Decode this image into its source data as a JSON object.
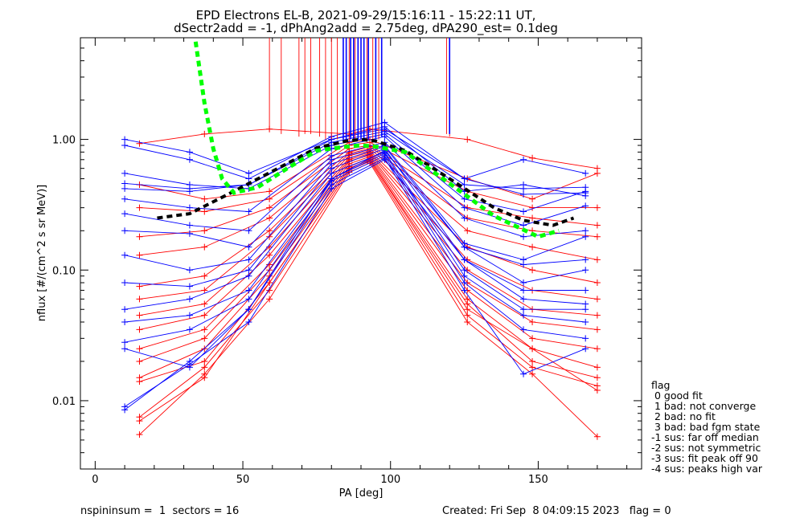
{
  "title_line1": "EPD Electrons EL-B, 2021-09-29/15:16:11 - 15:22:11 UT,",
  "title_line2": "dSectr2add = -1, dPhAng2add = 2.75deg, dPA290_est=   0.1deg",
  "footer": {
    "left": "nspininsum =  1  sectors = 16",
    "right": "Created: Fri Sep  8 04:09:15 2023   flag = 0"
  },
  "legend": {
    "heading": "flag",
    "items": [
      " 0 good fit",
      " 1 bad: not converge",
      " 2 bad: no fit",
      " 3 bad: bad fgm state",
      "-1 sus: far off median",
      "-2 sus: not symmetric",
      "-3 sus: fit peak off 90",
      "-4 sus: peaks high var"
    ]
  },
  "colors": {
    "red": "#ff0000",
    "blue": "#0000ff",
    "green": "#00ff00",
    "black": "#000000"
  },
  "chart_data": {
    "type": "line",
    "title": "EPD Electrons EL-B, 2021-09-29/15:16:11 - 15:22:11 UT,",
    "subtitle": "dSectr2add = -1, dPhAng2add = 2.75deg, dPA290_est=   0.1deg",
    "xlabel": "PA [deg]",
    "ylabel": "nflux [#/(cm^2 s sr MeV)]",
    "xlim": [
      -5,
      185
    ],
    "ylim": [
      0.003,
      6.0
    ],
    "yscale": "log",
    "x_ticks": [
      0,
      50,
      100,
      150
    ],
    "x_tick_labels": [
      "0",
      "50",
      "100",
      "150"
    ],
    "y_ticks": [
      0.01,
      0.1,
      1.0
    ],
    "y_tick_labels": [
      "0.01",
      "0.10",
      "1.00"
    ],
    "grid": false,
    "legend_position": "right, outside plot",
    "lines": [
      {
        "name": "median fit",
        "color": "black",
        "style": "dashed",
        "x": [
          21,
          32,
          45,
          60,
          75,
          85,
          90,
          95,
          105,
          120,
          135,
          145,
          155,
          162
        ],
        "y": [
          0.25,
          0.27,
          0.38,
          0.57,
          0.86,
          0.97,
          1.0,
          0.97,
          0.82,
          0.5,
          0.3,
          0.24,
          0.22,
          0.25
        ]
      },
      {
        "name": "green fit",
        "color": "green",
        "style": "dashed",
        "x": [
          34,
          37,
          40,
          43,
          47,
          55,
          65,
          75,
          85,
          90,
          95,
          105,
          120,
          135,
          150,
          157
        ],
        "y": [
          5.6,
          1.9,
          0.85,
          0.5,
          0.39,
          0.43,
          0.6,
          0.82,
          0.88,
          0.9,
          0.88,
          0.8,
          0.46,
          0.26,
          0.18,
          0.2
        ]
      }
    ],
    "series": [
      {
        "color": "blue",
        "x": [
          10,
          32,
          52,
          80,
          98,
          125,
          145,
          166
        ],
        "y": [
          1.0,
          0.8,
          0.55,
          1.0,
          1.25,
          0.4,
          0.45,
          0.37
        ]
      },
      {
        "color": "blue",
        "x": [
          10,
          32,
          52,
          80,
          98,
          125,
          145,
          166
        ],
        "y": [
          0.9,
          0.7,
          0.5,
          1.05,
          1.35,
          0.5,
          0.7,
          0.55
        ]
      },
      {
        "color": "blue",
        "x": [
          10,
          32,
          52,
          80,
          98,
          125,
          145,
          166
        ],
        "y": [
          0.55,
          0.45,
          0.42,
          0.9,
          1.1,
          0.35,
          0.28,
          0.4
        ]
      },
      {
        "color": "blue",
        "x": [
          10,
          32,
          52,
          80,
          98,
          125,
          145,
          166
        ],
        "y": [
          0.46,
          0.42,
          0.45,
          0.95,
          1.15,
          0.45,
          0.42,
          0.43
        ]
      },
      {
        "color": "blue",
        "x": [
          10,
          32,
          52,
          80,
          98,
          125,
          145,
          166
        ],
        "y": [
          0.42,
          0.4,
          0.45,
          1.0,
          1.2,
          0.5,
          0.38,
          0.39
        ]
      },
      {
        "color": "blue",
        "x": [
          10,
          32,
          52,
          80,
          98,
          125,
          145,
          166
        ],
        "y": [
          0.35,
          0.3,
          0.28,
          0.85,
          1.05,
          0.3,
          0.22,
          0.31
        ]
      },
      {
        "color": "blue",
        "x": [
          10,
          32,
          52,
          80,
          98,
          125,
          145,
          166
        ],
        "y": [
          0.27,
          0.22,
          0.2,
          0.75,
          0.95,
          0.25,
          0.18,
          0.2
        ]
      },
      {
        "color": "blue",
        "x": [
          10,
          32,
          52,
          80,
          98,
          125,
          145,
          166
        ],
        "y": [
          0.2,
          0.19,
          0.15,
          0.7,
          0.9,
          0.16,
          0.12,
          0.18
        ]
      },
      {
        "color": "blue",
        "x": [
          10,
          32,
          52,
          80,
          98,
          125,
          145,
          166
        ],
        "y": [
          0.13,
          0.1,
          0.12,
          0.65,
          0.88,
          0.15,
          0.08,
          0.1
        ]
      },
      {
        "color": "blue",
        "x": [
          10,
          32,
          52,
          80,
          98,
          125,
          145,
          166
        ],
        "y": [
          0.08,
          0.075,
          0.1,
          0.6,
          0.85,
          0.12,
          0.07,
          0.07
        ]
      },
      {
        "color": "blue",
        "x": [
          10,
          32,
          52,
          80,
          98,
          125,
          145,
          166
        ],
        "y": [
          0.05,
          0.06,
          0.09,
          0.55,
          0.8,
          0.1,
          0.05,
          0.05
        ]
      },
      {
        "color": "blue",
        "x": [
          10,
          32,
          52,
          80,
          98,
          125,
          145,
          166
        ],
        "y": [
          0.04,
          0.045,
          0.07,
          0.5,
          0.78,
          0.09,
          0.045,
          0.04
        ]
      },
      {
        "color": "blue",
        "x": [
          10,
          32,
          52,
          80,
          98,
          125,
          145,
          166
        ],
        "y": [
          0.028,
          0.035,
          0.06,
          0.48,
          0.75,
          0.08,
          0.035,
          0.03
        ]
      },
      {
        "color": "blue",
        "x": [
          10,
          32,
          52,
          80,
          98,
          125,
          145,
          166
        ],
        "y": [
          0.025,
          0.018,
          0.05,
          0.45,
          0.72,
          0.07,
          0.016,
          0.025
        ]
      },
      {
        "color": "blue",
        "x": [
          10,
          32,
          52,
          80,
          98,
          125,
          145,
          166
        ],
        "y": [
          0.009,
          0.019,
          0.04,
          0.42,
          0.7,
          0.12,
          0.06,
          0.055
        ]
      },
      {
        "color": "blue",
        "x": [
          10,
          32,
          52,
          80,
          98,
          125,
          145,
          166
        ],
        "y": [
          0.0085,
          0.02,
          0.05,
          0.5,
          0.82,
          0.15,
          0.11,
          0.12
        ]
      },
      {
        "color": "red",
        "x": [
          15,
          37,
          59,
          86,
          93,
          126,
          148,
          170
        ],
        "y": [
          0.93,
          1.1,
          1.2,
          1.1,
          1.2,
          1.0,
          0.72,
          0.6
        ]
      },
      {
        "color": "red",
        "x": [
          15,
          37,
          59,
          86,
          93,
          126,
          148,
          170
        ],
        "y": [
          0.45,
          0.35,
          0.4,
          0.95,
          1.0,
          0.5,
          0.35,
          0.55
        ]
      },
      {
        "color": "red",
        "x": [
          15,
          37,
          59,
          86,
          93,
          126,
          148,
          170
        ],
        "y": [
          0.3,
          0.28,
          0.35,
          0.9,
          0.95,
          0.4,
          0.3,
          0.3
        ]
      },
      {
        "color": "red",
        "x": [
          15,
          37,
          59,
          86,
          93,
          126,
          148,
          170
        ],
        "y": [
          0.18,
          0.2,
          0.3,
          0.85,
          0.9,
          0.3,
          0.25,
          0.22
        ]
      },
      {
        "color": "red",
        "x": [
          15,
          37,
          59,
          86,
          93,
          126,
          148,
          170
        ],
        "y": [
          0.13,
          0.15,
          0.25,
          0.8,
          0.88,
          0.25,
          0.2,
          0.18
        ]
      },
      {
        "color": "red",
        "x": [
          15,
          37,
          59,
          86,
          93,
          126,
          148,
          170
        ],
        "y": [
          0.075,
          0.09,
          0.2,
          0.78,
          0.85,
          0.2,
          0.15,
          0.12
        ]
      },
      {
        "color": "red",
        "x": [
          15,
          37,
          59,
          86,
          93,
          126,
          148,
          170
        ],
        "y": [
          0.06,
          0.07,
          0.18,
          0.75,
          0.82,
          0.15,
          0.1,
          0.08
        ]
      },
      {
        "color": "red",
        "x": [
          15,
          37,
          59,
          86,
          93,
          126,
          148,
          170
        ],
        "y": [
          0.045,
          0.055,
          0.15,
          0.72,
          0.8,
          0.12,
          0.07,
          0.06
        ]
      },
      {
        "color": "red",
        "x": [
          15,
          37,
          59,
          86,
          93,
          126,
          148,
          170
        ],
        "y": [
          0.035,
          0.045,
          0.13,
          0.7,
          0.78,
          0.1,
          0.05,
          0.045
        ]
      },
      {
        "color": "red",
        "x": [
          15,
          37,
          59,
          86,
          93,
          126,
          148,
          170
        ],
        "y": [
          0.025,
          0.035,
          0.11,
          0.68,
          0.76,
          0.08,
          0.04,
          0.035
        ]
      },
      {
        "color": "red",
        "x": [
          15,
          37,
          59,
          86,
          93,
          126,
          148,
          170
        ],
        "y": [
          0.02,
          0.03,
          0.1,
          0.65,
          0.74,
          0.07,
          0.03,
          0.025
        ]
      },
      {
        "color": "red",
        "x": [
          15,
          37,
          59,
          86,
          93,
          126,
          148,
          170
        ],
        "y": [
          0.015,
          0.025,
          0.09,
          0.62,
          0.72,
          0.06,
          0.025,
          0.018
        ]
      },
      {
        "color": "red",
        "x": [
          15,
          37,
          59,
          86,
          93,
          126,
          148,
          170
        ],
        "y": [
          0.014,
          0.02,
          0.08,
          0.6,
          0.7,
          0.055,
          0.02,
          0.015
        ]
      },
      {
        "color": "red",
        "x": [
          15,
          37,
          59,
          86,
          93,
          126,
          148,
          170
        ],
        "y": [
          0.0075,
          0.018,
          0.07,
          0.58,
          0.68,
          0.045,
          0.018,
          0.013
        ]
      },
      {
        "color": "red",
        "x": [
          15,
          37,
          59,
          86,
          93,
          126,
          148,
          170
        ],
        "y": [
          0.0055,
          0.016,
          0.06,
          0.56,
          0.66,
          0.04,
          0.016,
          0.0053
        ]
      },
      {
        "color": "red",
        "x": [
          15,
          37,
          59,
          86,
          93,
          126,
          148,
          170
        ],
        "y": [
          0.007,
          0.015,
          0.08,
          0.6,
          0.7,
          0.05,
          0.025,
          0.012
        ]
      }
    ]
  }
}
